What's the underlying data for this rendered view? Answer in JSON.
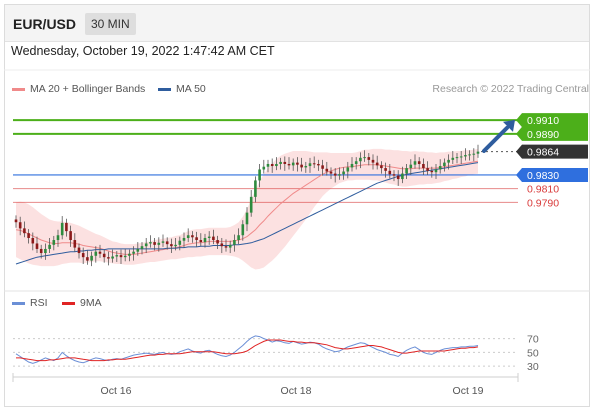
{
  "header": {
    "pair": "EUR/USD",
    "timeframe": "30 MIN"
  },
  "datetime": "Wednesday, October 19, 2022 1:47:42 AM CET",
  "legend": {
    "ma20": {
      "label": "MA 20 + Bollinger Bands",
      "color": "#f08a8a"
    },
    "ma50": {
      "label": "MA 50",
      "color": "#2f5d9e"
    }
  },
  "research_credit": "Research © 2022 Trading Central",
  "rsi_legend": {
    "rsi": {
      "label": "RSI",
      "color": "#6b8fd6"
    },
    "ma9": {
      "label": "9MA",
      "color": "#e02424"
    }
  },
  "chart_data": {
    "type": "candlestick",
    "price_range": [
      0.9665,
      0.9935
    ],
    "x_ticks": [
      "Oct 16",
      "Oct 18",
      "Oct 19"
    ],
    "levels": [
      {
        "value": 0.991,
        "label": "0.9910",
        "kind": "resistance",
        "color": "#4caf1a"
      },
      {
        "value": 0.989,
        "label": "0.9890",
        "kind": "resistance",
        "color": "#4caf1a"
      },
      {
        "value": 0.9864,
        "label": "0.9864",
        "kind": "current",
        "color": "#333333"
      },
      {
        "value": 0.983,
        "label": "0.9830",
        "kind": "pivot",
        "color": "#2f6fde"
      },
      {
        "value": 0.981,
        "label": "0.9810",
        "kind": "support",
        "color": "#d93b3b"
      },
      {
        "value": 0.979,
        "label": "0.9790",
        "kind": "support",
        "color": "#d93b3b"
      }
    ],
    "close": [
      0.9761,
      0.9752,
      0.9745,
      0.9738,
      0.973,
      0.9722,
      0.9716,
      0.9722,
      0.9728,
      0.9735,
      0.9742,
      0.976,
      0.9748,
      0.9735,
      0.9724,
      0.9716,
      0.971,
      0.9705,
      0.9712,
      0.9718,
      0.9715,
      0.971,
      0.9708,
      0.9711,
      0.9713,
      0.971,
      0.9712,
      0.9715,
      0.9718,
      0.9722,
      0.9726,
      0.973,
      0.9732,
      0.9728,
      0.9731,
      0.9733,
      0.9729,
      0.9726,
      0.9728,
      0.9734,
      0.9738,
      0.9742,
      0.9739,
      0.9735,
      0.9732,
      0.9738,
      0.974,
      0.9735,
      0.973,
      0.9726,
      0.9724,
      0.9728,
      0.9735,
      0.9742,
      0.9758,
      0.9775,
      0.9798,
      0.9822,
      0.9838,
      0.9842,
      0.9846,
      0.9843,
      0.9846,
      0.9849,
      0.9846,
      0.9844,
      0.9848,
      0.9845,
      0.9841,
      0.9843,
      0.9847,
      0.9846,
      0.9844,
      0.9839,
      0.9835,
      0.9832,
      0.9829,
      0.9831,
      0.9835,
      0.9841,
      0.9846,
      0.985,
      0.9855,
      0.9856,
      0.9852,
      0.9848,
      0.9844,
      0.984,
      0.9836,
      0.9831,
      0.9829,
      0.9824,
      0.9832,
      0.984,
      0.9845,
      0.985,
      0.9846,
      0.984,
      0.9836,
      0.9834,
      0.9838,
      0.9843,
      0.9848,
      0.9852,
      0.9855,
      0.9856,
      0.9857,
      0.9859,
      0.986,
      0.9861,
      0.9864
    ],
    "ma20": [
      0.975,
      0.9749,
      0.9747,
      0.9744,
      0.9741,
      0.9738,
      0.9735,
      0.9733,
      0.9731,
      0.973,
      0.973,
      0.9731,
      0.9731,
      0.9731,
      0.973,
      0.9729,
      0.9727,
      0.9726,
      0.9725,
      0.9724,
      0.9723,
      0.9721,
      0.9719,
      0.9717,
      0.9716,
      0.9715,
      0.9714,
      0.9714,
      0.9714,
      0.9715,
      0.9716,
      0.9717,
      0.9718,
      0.9719,
      0.972,
      0.9721,
      0.9722,
      0.9723,
      0.9724,
      0.9725,
      0.9727,
      0.9729,
      0.973,
      0.9731,
      0.9731,
      0.9732,
      0.9733,
      0.9733,
      0.9733,
      0.9733,
      0.9733,
      0.9733,
      0.9734,
      0.9735,
      0.9737,
      0.974,
      0.9745,
      0.975,
      0.9757,
      0.9763,
      0.977,
      0.9776,
      0.9782,
      0.9788,
      0.9793,
      0.9798,
      0.9803,
      0.9807,
      0.9811,
      0.9815,
      0.9819,
      0.9823,
      0.9827,
      0.9831,
      0.9834,
      0.9836,
      0.9838,
      0.984,
      0.9841,
      0.9842,
      0.9842,
      0.9843,
      0.9844,
      0.9845,
      0.9845,
      0.9845,
      0.9845,
      0.9844,
      0.9843,
      0.9842,
      0.9841,
      0.984,
      0.9839,
      0.9839,
      0.9839,
      0.984,
      0.984,
      0.984,
      0.984,
      0.984,
      0.984,
      0.9841,
      0.9842,
      0.9843,
      0.9844,
      0.9845,
      0.9846,
      0.9847,
      0.9848,
      0.9849,
      0.985
    ],
    "ma50": [
      0.97,
      0.9702,
      0.9704,
      0.9706,
      0.9708,
      0.971,
      0.9711,
      0.9712,
      0.9713,
      0.9714,
      0.9715,
      0.9716,
      0.9717,
      0.9718,
      0.9718,
      0.9719,
      0.9719,
      0.972,
      0.972,
      0.9721,
      0.9721,
      0.9721,
      0.9722,
      0.9722,
      0.9722,
      0.9722,
      0.9722,
      0.9722,
      0.9722,
      0.9722,
      0.9722,
      0.9722,
      0.9722,
      0.9722,
      0.9722,
      0.9722,
      0.9723,
      0.9723,
      0.9723,
      0.9724,
      0.9724,
      0.9725,
      0.9725,
      0.9725,
      0.9726,
      0.9726,
      0.9726,
      0.9727,
      0.9727,
      0.9727,
      0.9727,
      0.9727,
      0.9728,
      0.9728,
      0.9729,
      0.973,
      0.9731,
      0.9733,
      0.9735,
      0.9737,
      0.974,
      0.9743,
      0.9746,
      0.9749,
      0.9752,
      0.9755,
      0.9758,
      0.9761,
      0.9764,
      0.9767,
      0.977,
      0.9773,
      0.9776,
      0.9779,
      0.9782,
      0.9785,
      0.9788,
      0.9791,
      0.9794,
      0.9797,
      0.98,
      0.9803,
      0.9806,
      0.9809,
      0.9812,
      0.9815,
      0.9818,
      0.982,
      0.9822,
      0.9824,
      0.9826,
      0.9828,
      0.9829,
      0.9831,
      0.9832,
      0.9833,
      0.9834,
      0.9835,
      0.9836,
      0.9837,
      0.9838,
      0.9839,
      0.984,
      0.9841,
      0.9842,
      0.9843,
      0.9844,
      0.9845,
      0.9846,
      0.9847,
      0.9848
    ],
    "band_halfwidth": [
      0.004,
      0.0042,
      0.0043,
      0.0043,
      0.0042,
      0.004,
      0.0038,
      0.0036,
      0.0034,
      0.0033,
      0.0032,
      0.0031,
      0.003,
      0.0029,
      0.0028,
      0.0027,
      0.0026,
      0.0024,
      0.0022,
      0.002,
      0.0019,
      0.0018,
      0.0017,
      0.0016,
      0.0016,
      0.0015,
      0.0015,
      0.0015,
      0.0015,
      0.0015,
      0.0015,
      0.0015,
      0.0015,
      0.0016,
      0.0016,
      0.0016,
      0.0016,
      0.0016,
      0.0017,
      0.0017,
      0.0018,
      0.0019,
      0.002,
      0.002,
      0.002,
      0.002,
      0.002,
      0.002,
      0.002,
      0.002,
      0.002,
      0.0021,
      0.0023,
      0.0026,
      0.0032,
      0.004,
      0.005,
      0.0058,
      0.0064,
      0.0068,
      0.007,
      0.0071,
      0.0071,
      0.007,
      0.0068,
      0.0065,
      0.0062,
      0.0058,
      0.0054,
      0.005,
      0.0045,
      0.004,
      0.0036,
      0.0032,
      0.0029,
      0.0026,
      0.0024,
      0.0022,
      0.0021,
      0.002,
      0.002,
      0.002,
      0.0021,
      0.0022,
      0.0022,
      0.0023,
      0.0023,
      0.0024,
      0.0024,
      0.0025,
      0.0025,
      0.0026,
      0.0026,
      0.0026,
      0.0025,
      0.0025,
      0.0024,
      0.0024,
      0.0023,
      0.0023,
      0.0022,
      0.0022,
      0.0021,
      0.0021,
      0.002,
      0.002,
      0.0019,
      0.0019,
      0.0018,
      0.0018,
      0.0018
    ],
    "rsi_ticks": [
      70,
      50,
      30
    ],
    "rsi": [
      48,
      44,
      40,
      36,
      34,
      36,
      39,
      42,
      40,
      38,
      42,
      50,
      45,
      41,
      38,
      36,
      35,
      37,
      40,
      42,
      41,
      39,
      38,
      40,
      41,
      40,
      42,
      44,
      46,
      47,
      48,
      49,
      48,
      47,
      49,
      50,
      48,
      47,
      48,
      51,
      53,
      55,
      52,
      50,
      49,
      52,
      53,
      50,
      47,
      45,
      44,
      46,
      50,
      55,
      60,
      66,
      71,
      74,
      73,
      70,
      68,
      65,
      67,
      66,
      64,
      63,
      66,
      64,
      62,
      63,
      65,
      64,
      62,
      58,
      55,
      53,
      51,
      52,
      55,
      58,
      60,
      62,
      64,
      63,
      60,
      57,
      54,
      52,
      50,
      47,
      46,
      44,
      49,
      53,
      56,
      58,
      54,
      50,
      48,
      47,
      50,
      53,
      55,
      56,
      57,
      57,
      58,
      58,
      59,
      59,
      60
    ],
    "rsi_ma9": [
      42,
      42,
      41,
      40,
      39,
      38,
      38,
      38,
      39,
      39,
      40,
      41,
      42,
      42,
      42,
      41,
      40,
      39,
      38,
      38,
      38,
      38,
      39,
      39,
      40,
      40,
      40,
      41,
      42,
      43,
      44,
      45,
      46,
      46,
      47,
      47,
      48,
      48,
      48,
      48,
      49,
      50,
      51,
      51,
      51,
      51,
      51,
      51,
      50,
      49,
      48,
      48,
      48,
      49,
      50,
      52,
      56,
      60,
      63,
      66,
      68,
      68,
      68,
      68,
      67,
      66,
      66,
      65,
      65,
      64,
      64,
      64,
      63,
      62,
      61,
      59,
      57,
      56,
      55,
      55,
      56,
      57,
      58,
      59,
      60,
      60,
      59,
      58,
      56,
      54,
      52,
      50,
      49,
      49,
      50,
      51,
      52,
      52,
      52,
      52,
      52,
      52,
      52,
      53,
      54,
      55,
      56,
      56,
      57,
      57,
      58
    ]
  }
}
